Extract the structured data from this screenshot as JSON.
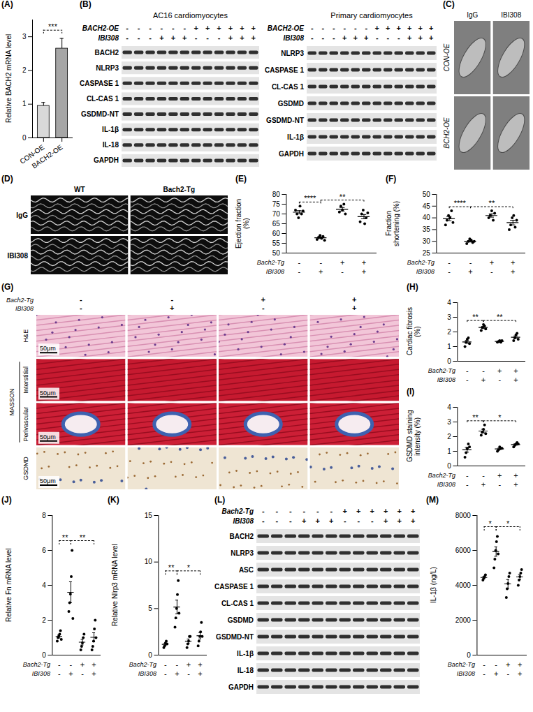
{
  "chart_data": [
    {
      "panel": "(A)",
      "type": "bar",
      "ylabel": "Relative BACH2 mRNA level",
      "categories": [
        "CON-OE",
        "BACH2-OE"
      ],
      "values": [
        0.95,
        2.65
      ],
      "errors": [
        0.1,
        0.3
      ],
      "colors": [
        "#d9d9d9",
        "#a6a6a6"
      ],
      "ylim": [
        0,
        3.5
      ],
      "yticks": [
        0,
        1,
        2,
        3
      ],
      "comparisons": [
        {
          "from": 0,
          "to": 1,
          "label": "***"
        }
      ]
    },
    {
      "panel": "(E)",
      "type": "scatter",
      "ylabel": "Ejection fraction (%)",
      "color": "#000000",
      "ylim": [
        50,
        80
      ],
      "yticks": [
        50,
        55,
        60,
        65,
        70,
        75,
        80
      ],
      "factors": [
        {
          "label": "Bach2-Tg",
          "levels": [
            "-",
            "-",
            "+",
            "+"
          ]
        },
        {
          "label": "IBI308",
          "levels": [
            "-",
            "+",
            "-",
            "+"
          ]
        }
      ],
      "groups": [
        {
          "values": [
            72,
            70,
            68,
            74,
            70,
            71.5
          ],
          "mean": 70.9,
          "error": 0.8
        },
        {
          "values": [
            57,
            58,
            59,
            57.5,
            58.5,
            56.5
          ],
          "mean": 57.8,
          "error": 0.4
        },
        {
          "values": [
            71,
            74,
            72,
            75,
            70
          ],
          "mean": 72.4,
          "error": 0.9
        },
        {
          "values": [
            66,
            70,
            72,
            65,
            68,
            70.5
          ],
          "mean": 68.6,
          "error": 1.1
        }
      ],
      "comparisons": [
        {
          "from": 0,
          "to": 1,
          "label": "****"
        },
        {
          "from": 1,
          "to": 3,
          "label": "**"
        }
      ]
    },
    {
      "panel": "(F)",
      "type": "scatter",
      "ylabel": "Fraction shortening (%)",
      "color": "#000000",
      "ylim": [
        25,
        50
      ],
      "yticks": [
        25,
        30,
        35,
        40,
        45,
        50
      ],
      "factors": [
        {
          "label": "Bach2-Tg",
          "levels": [
            "-",
            "-",
            "+",
            "+"
          ]
        },
        {
          "label": "IBI308",
          "levels": [
            "-",
            "+",
            "-",
            "+"
          ]
        }
      ],
      "groups": [
        {
          "values": [
            37,
            39,
            41,
            40,
            43,
            38
          ],
          "mean": 39.7,
          "error": 0.9
        },
        {
          "values": [
            29,
            30,
            31,
            30.5,
            29.5,
            30
          ],
          "mean": 30,
          "error": 0.3
        },
        {
          "values": [
            40,
            41,
            43,
            39,
            42
          ],
          "mean": 41,
          "error": 0.7
        },
        {
          "values": [
            35,
            37,
            40,
            41,
            36,
            39
          ],
          "mean": 38,
          "error": 1.0
        }
      ],
      "comparisons": [
        {
          "from": 0,
          "to": 1,
          "label": "****"
        },
        {
          "from": 1,
          "to": 3,
          "label": "**"
        }
      ]
    },
    {
      "panel": "(H)",
      "type": "scatter",
      "ylabel": "Cardiac fibrosis (%)",
      "color": "#000000",
      "ylim": [
        0,
        4
      ],
      "yticks": [
        0,
        1,
        2,
        3,
        4
      ],
      "factors": [
        {
          "label": "Bach2-Tg",
          "levels": [
            "-",
            "-",
            "+",
            "+"
          ]
        },
        {
          "label": "IBI308",
          "levels": [
            "-",
            "+",
            "-",
            "+"
          ]
        }
      ],
      "groups": [
        {
          "values": [
            1.0,
            1.3,
            1.5,
            1.6,
            1.2
          ],
          "mean": 1.32,
          "error": 0.1
        },
        {
          "values": [
            2.1,
            2.3,
            2.5,
            2.4,
            2.2
          ],
          "mean": 2.3,
          "error": 0.07
        },
        {
          "values": [
            1.3,
            1.35,
            1.4,
            1.3,
            1.4
          ],
          "mean": 1.35,
          "error": 0.02
        },
        {
          "values": [
            1.4,
            1.6,
            1.8,
            1.9,
            1.5
          ],
          "mean": 1.64,
          "error": 0.09
        }
      ],
      "comparisons": [
        {
          "from": 0,
          "to": 1,
          "label": "**"
        },
        {
          "from": 1,
          "to": 3,
          "label": "**"
        }
      ]
    },
    {
      "panel": "(I)",
      "type": "scatter",
      "ylabel": "GSDMD staining intensity (%)",
      "color": "#000000",
      "ylim": [
        0,
        4
      ],
      "yticks": [
        0,
        1,
        2,
        3,
        4
      ],
      "factors": [
        {
          "label": "Bach2-Tg",
          "levels": [
            "-",
            "-",
            "+",
            "+"
          ]
        },
        {
          "label": "IBI308",
          "levels": [
            "-",
            "+",
            "-",
            "+"
          ]
        }
      ],
      "groups": [
        {
          "values": [
            0.6,
            0.9,
            1.2,
            1.5,
            1.3
          ],
          "mean": 1.1,
          "error": 0.16
        },
        {
          "values": [
            2.1,
            2.3,
            2.5,
            2.8,
            2.2
          ],
          "mean": 2.38,
          "error": 0.12
        },
        {
          "values": [
            1.0,
            1.1,
            1.3,
            1.2,
            1.2
          ],
          "mean": 1.16,
          "error": 0.05
        },
        {
          "values": [
            1.3,
            1.4,
            1.5,
            1.6,
            1.5
          ],
          "mean": 1.46,
          "error": 0.05
        }
      ],
      "comparisons": [
        {
          "from": 0,
          "to": 1,
          "label": "**"
        },
        {
          "from": 1,
          "to": 3,
          "label": "*"
        }
      ]
    },
    {
      "panel": "(J)",
      "type": "scatter",
      "ylabel": "Relative Fn mRNA level",
      "color": "#000000",
      "ylim": [
        0,
        8
      ],
      "yticks": [
        0,
        2,
        4,
        6,
        8
      ],
      "factors": [
        {
          "label": "Bach2-Tg",
          "levels": [
            "-",
            "-",
            "+",
            "+"
          ]
        },
        {
          "label": "IBI308",
          "levels": [
            "-",
            "+",
            "-",
            "+"
          ]
        }
      ],
      "groups": [
        {
          "values": [
            0.8,
            1.0,
            1.1,
            1.2,
            1.4,
            0.9
          ],
          "mean": 1.07,
          "error": 0.09
        },
        {
          "values": [
            2.5,
            3.0,
            3.5,
            4.5,
            6.0,
            2.1
          ],
          "mean": 3.6,
          "error": 0.6
        },
        {
          "values": [
            0.3,
            0.5,
            0.7,
            1.0,
            1.2
          ],
          "mean": 0.74,
          "error": 0.16
        },
        {
          "values": [
            0.3,
            0.5,
            0.8,
            1.5,
            2.0,
            1.0
          ],
          "mean": 1.02,
          "error": 0.26
        }
      ],
      "comparisons": [
        {
          "from": 0,
          "to": 1,
          "label": "**"
        },
        {
          "from": 1,
          "to": 3,
          "label": "**"
        }
      ]
    },
    {
      "panel": "(K)",
      "type": "scatter",
      "ylabel": "Relative Nlrp3 mRNA level",
      "color": "#000000",
      "ylim": [
        0,
        15
      ],
      "yticks": [
        0,
        5,
        10,
        15
      ],
      "factors": [
        {
          "label": "Bach2-Tg",
          "levels": [
            "-",
            "-",
            "+",
            "+"
          ]
        },
        {
          "label": "IBI308",
          "levels": [
            "-",
            "+",
            "-",
            "+"
          ]
        }
      ],
      "groups": [
        {
          "values": [
            0.8,
            1.0,
            1.3,
            1.5,
            1.2
          ],
          "mean": 1.16,
          "error": 0.12
        },
        {
          "values": [
            3,
            4,
            5,
            6.5,
            8,
            4.5
          ],
          "mean": 5.17,
          "error": 0.74
        },
        {
          "values": [
            0.8,
            1.2,
            1.5,
            2.0,
            2.0
          ],
          "mean": 1.5,
          "error": 0.23
        },
        {
          "values": [
            1.0,
            1.5,
            2.0,
            2.5,
            3.5,
            2.0
          ],
          "mean": 2.08,
          "error": 0.35
        }
      ],
      "comparisons": [
        {
          "from": 0,
          "to": 1,
          "label": "**"
        },
        {
          "from": 1,
          "to": 3,
          "label": "*"
        }
      ]
    },
    {
      "panel": "(M)",
      "type": "scatter",
      "ylabel": "IL-1β (ng/L)",
      "color": "#000000",
      "ylim": [
        0,
        8000
      ],
      "yticks": [
        0,
        2000,
        4000,
        6000,
        8000
      ],
      "factors": [
        {
          "label": "Bach2-Tg",
          "levels": [
            "-",
            "-",
            "+",
            "+"
          ]
        },
        {
          "label": "IBI308",
          "levels": [
            "-",
            "+",
            "-",
            "+"
          ]
        }
      ],
      "groups": [
        {
          "values": [
            4300,
            4400,
            4500,
            4600
          ],
          "mean": 4450,
          "error": 65
        },
        {
          "values": [
            5000,
            5500,
            6000,
            6500,
            6800,
            5800
          ],
          "mean": 5933,
          "error": 270
        },
        {
          "values": [
            3300,
            3800,
            4100,
            4500,
            4700
          ],
          "mean": 4080,
          "error": 250
        },
        {
          "values": [
            4000,
            4300,
            4500,
            4700,
            4900
          ],
          "mean": 4480,
          "error": 155
        }
      ],
      "comparisons": [
        {
          "from": 0,
          "to": 1,
          "label": "*"
        },
        {
          "from": 1,
          "to": 3,
          "label": "*"
        }
      ]
    }
  ],
  "blots": [
    {
      "panel": "(B)",
      "title": "AC16 cardiomyocytes",
      "conditions": [
        {
          "label": "BACH2-OE",
          "levels": [
            "-",
            "-",
            "-",
            "-",
            "-",
            "-",
            "+",
            "+",
            "+",
            "+",
            "+",
            "+"
          ]
        },
        {
          "label": "IBI308",
          "levels": [
            "-",
            "-",
            "-",
            "+",
            "+",
            "+",
            "-",
            "-",
            "-",
            "+",
            "+",
            "+"
          ]
        }
      ],
      "proteins": [
        "BACH2",
        "NLRP3",
        "CASPASE 1",
        "CL-CAS 1",
        "GSDMD-NT",
        "IL-1β",
        "IL-18",
        "GAPDH"
      ]
    },
    {
      "title": "Primary cardiomyocytes",
      "conditions": [
        {
          "label": "BACH2-OE",
          "levels": [
            "-",
            "-",
            "-",
            "-",
            "-",
            "-",
            "+",
            "+",
            "+",
            "+",
            "+",
            "+"
          ]
        },
        {
          "label": "IBI308",
          "levels": [
            "-",
            "-",
            "-",
            "+",
            "+",
            "+",
            "-",
            "-",
            "-",
            "+",
            "+",
            "+"
          ]
        }
      ],
      "proteins": [
        "NLRP3",
        "CASPASE 1",
        "CL-CAS 1",
        "GSDMD",
        "GSDMD-NT",
        "IL-1β",
        "GAPDH"
      ]
    },
    {
      "panel": "(L)",
      "conditions": [
        {
          "label": "Bach2-Tg",
          "levels": [
            "-",
            "-",
            "-",
            "-",
            "-",
            "-",
            "+",
            "+",
            "+",
            "+",
            "+",
            "+"
          ]
        },
        {
          "label": "IBI308",
          "levels": [
            "-",
            "-",
            "-",
            "+",
            "+",
            "+",
            "-",
            "-",
            "-",
            "+",
            "+",
            "+"
          ]
        }
      ],
      "proteins": [
        "BACH2",
        "NLRP3",
        "ASC",
        "CASPASE 1",
        "CL-CAS 1",
        "GSDMD",
        "GSDMD-NT",
        "IL-1β",
        "IL-18",
        "GAPDH"
      ]
    }
  ],
  "images": [
    {
      "panel": "(C)",
      "columns": [
        "IgG",
        "IBI308"
      ],
      "rows": [
        "CON-OE",
        "BCH2-OE"
      ]
    },
    {
      "panel": "(D)",
      "columns": [
        "WT",
        "Bach2-Tg"
      ],
      "rows": [
        "IgG",
        "IBI308"
      ]
    },
    {
      "panel": "(G)",
      "factors": [
        {
          "label": "Bach2-Tg",
          "levels": [
            "-",
            "-",
            "+",
            "+"
          ]
        },
        {
          "label": "IBI308",
          "levels": [
            "-",
            "+",
            "-",
            "+"
          ]
        }
      ],
      "rows": [
        "H&E",
        "Interstitial",
        "Perivascular",
        "GSDMD"
      ],
      "row_groups": [
        {
          "label": "MASSON",
          "rows": [
            1,
            2
          ]
        }
      ],
      "scale_bar": "50μm"
    }
  ]
}
